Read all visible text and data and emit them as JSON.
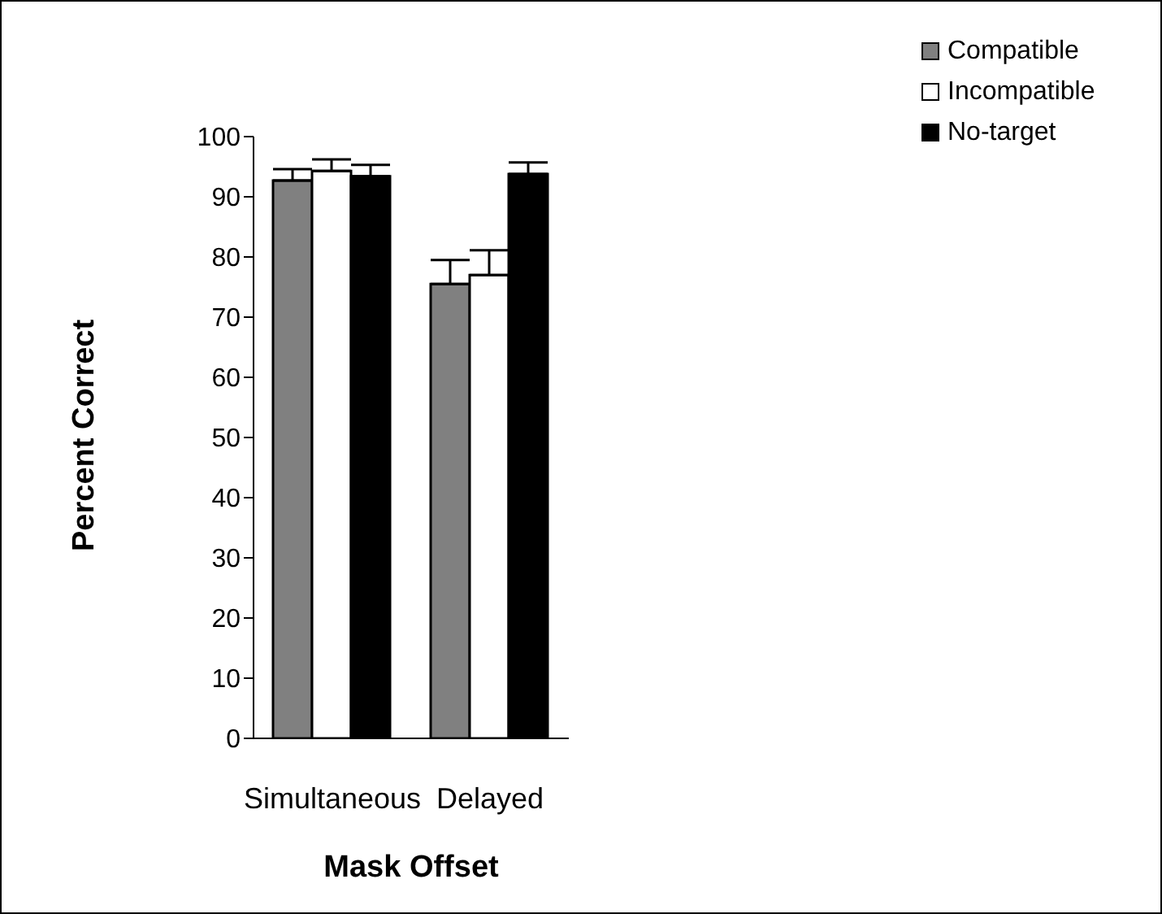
{
  "chart_data": {
    "type": "bar",
    "xlabel": "Mask Offset",
    "ylabel": "Percent Correct",
    "categories": [
      "Simultaneous",
      "Delayed"
    ],
    "series": [
      {
        "name": "Compatible",
        "color": "#808080",
        "values": [
          92.7,
          75.5
        ],
        "errors": [
          [
            92.7,
            94.6
          ],
          [
            75.5,
            79.5
          ]
        ]
      },
      {
        "name": "Incompatible",
        "color": "#ffffff",
        "values": [
          94.3,
          77.0
        ],
        "errors": [
          [
            94.3,
            96.2
          ],
          [
            77.0,
            81.1
          ]
        ]
      },
      {
        "name": "No-target",
        "color": "#000000",
        "values": [
          93.4,
          93.8
        ],
        "errors": [
          [
            93.4,
            95.3
          ],
          [
            93.8,
            95.7
          ]
        ]
      }
    ],
    "ylim": [
      0,
      100
    ],
    "yticks": [
      0,
      10,
      20,
      30,
      40,
      50,
      60,
      70,
      80,
      90,
      100
    ],
    "grid": false,
    "legend": "top right"
  }
}
